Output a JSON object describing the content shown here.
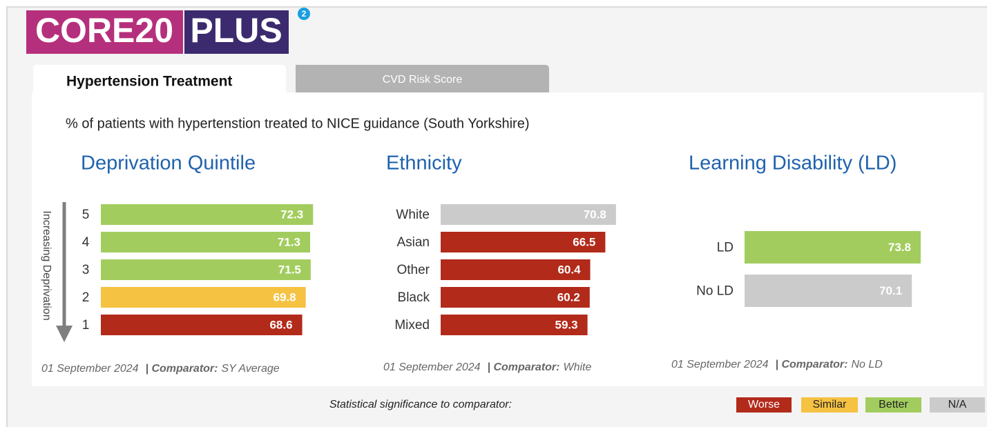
{
  "header": {
    "logo_left": "CORE20",
    "logo_right": "PLUS",
    "badge": "2"
  },
  "tabs": [
    {
      "label": "Hypertension Treatment",
      "active": true
    },
    {
      "label": "CVD Risk Score",
      "active": false
    }
  ],
  "subtitle": "% of patients with hypertenstion treated to NICE guidance (South Yorkshire)",
  "charts": [
    {
      "type": "bar",
      "title": "Deprivation Quintile",
      "axis_label": "Increasing Deprivation",
      "categories": [
        "5",
        "4",
        "3",
        "2",
        "1"
      ],
      "values": [
        72.3,
        71.3,
        71.5,
        69.8,
        68.6
      ],
      "colors": [
        "#a2cd5e",
        "#a2cd5e",
        "#a2cd5e",
        "#f5c242",
        "#b22a1a"
      ],
      "xlim": [
        0,
        100
      ],
      "date": "01 September 2024",
      "comparator_label": "| Comparator:",
      "comparator": "SY Average"
    },
    {
      "type": "bar",
      "title": "Ethnicity",
      "categories": [
        "White",
        "Asian",
        "Other",
        "Black",
        "Mixed"
      ],
      "values": [
        70.8,
        66.5,
        60.4,
        60.2,
        59.3
      ],
      "colors": [
        "#cbcbcb",
        "#b22a1a",
        "#b22a1a",
        "#b22a1a",
        "#b22a1a"
      ],
      "xlim": [
        0,
        100
      ],
      "date": "01 September 2024",
      "comparator_label": "| Comparator:",
      "comparator": "White"
    },
    {
      "type": "bar",
      "title": "Learning Disability (LD)",
      "categories": [
        "LD",
        "No LD"
      ],
      "values": [
        73.8,
        70.1
      ],
      "colors": [
        "#a2cd5e",
        "#cbcbcb"
      ],
      "xlim": [
        0,
        100
      ],
      "date": "01 September 2024",
      "comparator_label": "| Comparator:",
      "comparator": "No LD"
    }
  ],
  "legend": {
    "title": "Statistical significance to comparator:",
    "items": [
      {
        "label": "Worse",
        "color": "#b22a1a"
      },
      {
        "label": "Similar",
        "color": "#f5c242"
      },
      {
        "label": "Better",
        "color": "#a2cd5e"
      },
      {
        "label": "N/A",
        "color": "#cbcbcb"
      }
    ]
  }
}
